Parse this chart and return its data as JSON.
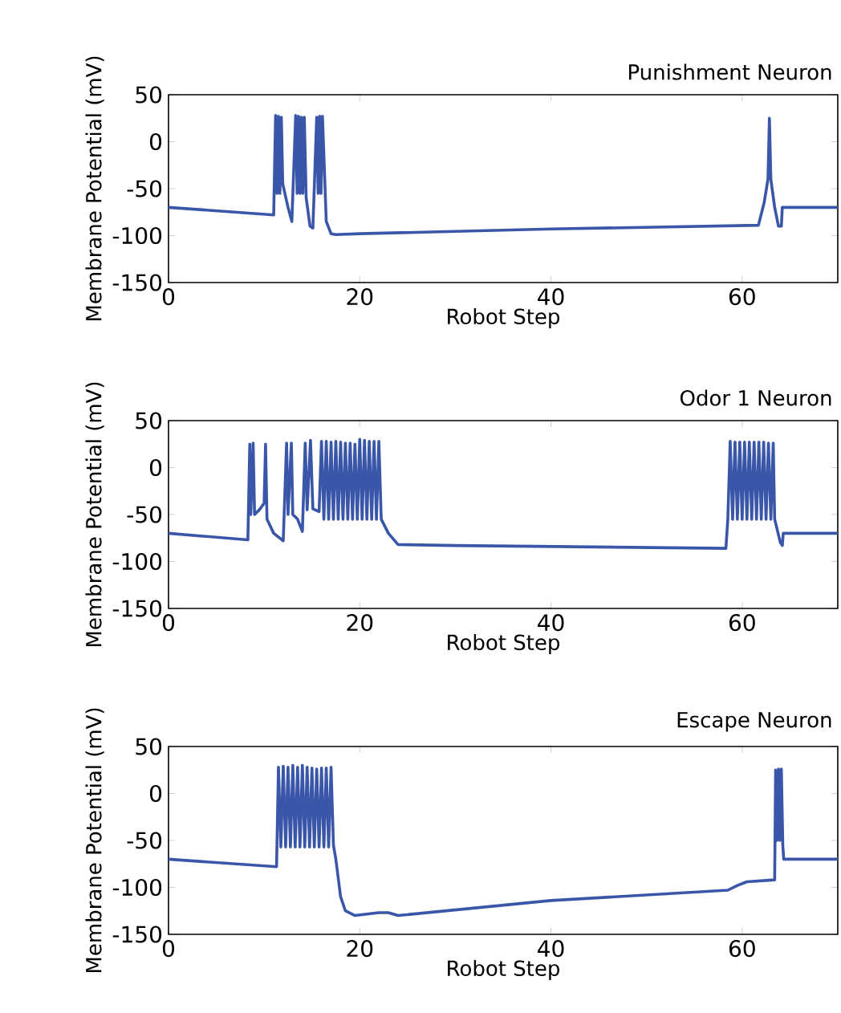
{
  "chart_data": [
    {
      "type": "line",
      "title": "Punishment Neuron",
      "xlabel": "Robot Step",
      "ylabel": "Membrane Potential (mV)",
      "xlim": [
        0,
        70
      ],
      "ylim": [
        -150,
        50
      ],
      "xticks": [
        0,
        20,
        40,
        60
      ],
      "yticks": [
        -150,
        -100,
        -50,
        0,
        50
      ],
      "series": [
        {
          "color": "#3a56a8",
          "x": [
            0,
            11.0,
            11.2,
            11.35,
            11.5,
            11.65,
            11.8,
            11.95,
            12.5,
            12.9,
            13.3,
            13.45,
            13.6,
            13.75,
            13.9,
            14.05,
            14.2,
            14.4,
            14.8,
            15.1,
            15.5,
            15.65,
            15.8,
            15.95,
            16.1,
            16.5,
            17.0,
            17.5,
            20,
            40,
            61.7,
            62.3,
            62.7,
            62.85,
            63.0,
            63.4,
            63.8,
            64.1,
            64.2,
            70
          ],
          "values": [
            -70,
            -78,
            28,
            -55,
            27,
            -55,
            26,
            -45,
            -70,
            -85,
            28,
            -55,
            27,
            -55,
            26,
            -55,
            26,
            -60,
            -90,
            -92,
            26,
            -55,
            27,
            -55,
            27,
            -85,
            -98,
            -99,
            -98,
            -93,
            -89,
            -65,
            -40,
            25,
            -40,
            -70,
            -90,
            -90,
            -70,
            -70
          ]
        }
      ]
    },
    {
      "type": "line",
      "title": "Odor 1 Neuron",
      "xlabel": "Robot Step",
      "ylabel": "Membrane Potential (mV)",
      "xlim": [
        0,
        70
      ],
      "ylim": [
        -150,
        50
      ],
      "xticks": [
        0,
        20,
        40,
        60
      ],
      "yticks": [
        -150,
        -100,
        -50,
        0,
        50
      ],
      "series": [
        {
          "color": "#3a56a8",
          "x": [
            0,
            8.3,
            8.5,
            8.6,
            8.85,
            9.0,
            9.5,
            10.0,
            10.15,
            10.3,
            11,
            12,
            12.35,
            12.5,
            12.85,
            13.0,
            13.5,
            14.0,
            14.3,
            14.5,
            14.85,
            15.1,
            15.75,
            16.0,
            16.25,
            16.5,
            16.75,
            17.0,
            17.25,
            17.5,
            17.75,
            18.0,
            18.25,
            18.5,
            18.75,
            19.0,
            19.25,
            19.5,
            19.75,
            20.0,
            20.25,
            20.5,
            20.75,
            21.0,
            21.25,
            21.5,
            21.75,
            22.0,
            22.25,
            23,
            24,
            30,
            58.3,
            58.5,
            58.75,
            59.0,
            59.25,
            59.5,
            59.75,
            60.0,
            60.25,
            60.5,
            60.75,
            61.0,
            61.25,
            61.5,
            61.75,
            62.0,
            62.25,
            62.5,
            62.75,
            63.0,
            63.25,
            63.4,
            64,
            64.2,
            64.3,
            70
          ],
          "values": [
            -70,
            -77,
            25,
            -50,
            26,
            -50,
            -45,
            -38,
            25,
            -55,
            -70,
            -78,
            26,
            -50,
            26,
            -50,
            -55,
            -68,
            26,
            -45,
            29,
            -44,
            -47,
            28,
            -55,
            28,
            -55,
            27,
            -55,
            28,
            -55,
            27,
            -55,
            26,
            -55,
            26,
            -55,
            25,
            -55,
            30,
            -55,
            29,
            -55,
            28,
            -55,
            28,
            -55,
            28,
            -55,
            -70,
            -82,
            -83,
            -86,
            -55,
            28,
            -55,
            27,
            -55,
            27,
            -55,
            27,
            -55,
            27,
            -55,
            27,
            -55,
            27,
            -55,
            27,
            -55,
            26,
            -55,
            26,
            -55,
            -80,
            -83,
            -70,
            -70
          ]
        }
      ]
    },
    {
      "type": "line",
      "title": "Escape Neuron",
      "xlabel": "Robot Step",
      "ylabel": "Membrane Potential (mV)",
      "xlim": [
        0,
        70
      ],
      "ylim": [
        -150,
        50
      ],
      "xticks": [
        0,
        20,
        40,
        60
      ],
      "yticks": [
        -150,
        -100,
        -50,
        0,
        50
      ],
      "series": [
        {
          "color": "#3a56a8",
          "x": [
            0,
            11.3,
            11.5,
            11.75,
            12.0,
            12.25,
            12.5,
            12.75,
            13.0,
            13.25,
            13.5,
            13.75,
            14.0,
            14.25,
            14.5,
            14.75,
            15.0,
            15.25,
            15.5,
            15.75,
            16.0,
            16.25,
            16.5,
            16.75,
            17.0,
            17.25,
            17.5,
            18,
            18.5,
            19.5,
            22,
            23,
            24,
            40,
            58.5,
            59.5,
            60.5,
            63.4,
            63.5,
            63.65,
            63.8,
            63.95,
            64.1,
            64.25,
            64.35,
            70
          ],
          "values": [
            -70,
            -78,
            28,
            -57,
            29,
            -57,
            28,
            -57,
            30,
            -57,
            28,
            -57,
            30,
            -57,
            28,
            -57,
            27,
            -57,
            26,
            -57,
            27,
            -57,
            27,
            -57,
            28,
            -55,
            -70,
            -110,
            -125,
            -130,
            -127,
            -127,
            -130,
            -114,
            -103,
            -98,
            -94,
            -92,
            25,
            -50,
            26,
            -50,
            26,
            -55,
            -70,
            -70
          ]
        }
      ]
    }
  ]
}
